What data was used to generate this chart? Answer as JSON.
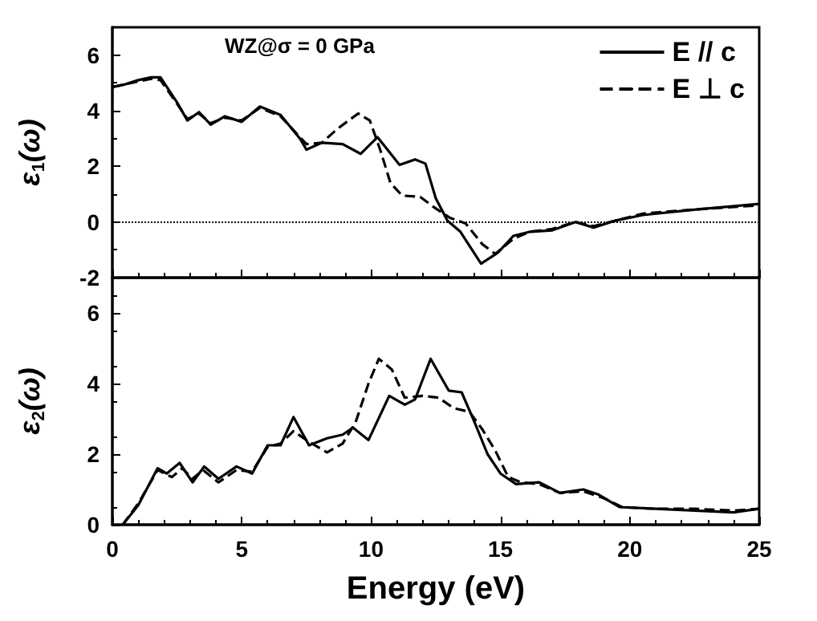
{
  "chart_data": [
    {
      "type": "line",
      "ylabel": "ε$_{1}$(ω)",
      "annotations": [
        "WZ@σ = 0 GPa"
      ],
      "legend": "top right",
      "marker": "none",
      "grid": false,
      "tick_labels": "y",
      "xlim": [
        0,
        25
      ],
      "xticks": [
        0,
        5,
        10,
        15,
        20,
        25
      ],
      "ylim": [
        -2,
        7
      ],
      "yticks": [
        -2,
        0,
        2,
        4,
        6
      ],
      "ref_lines": [
        {
          "axis": "y",
          "value": 0,
          "line_style": "dotted",
          "color": "#000000"
        }
      ],
      "series": [
        {
          "name": "E // c",
          "color": "#000000",
          "line_style": "solid",
          "x": [
            0,
            0.5,
            1,
            1.5,
            1.86,
            2.5,
            2.9,
            3.35,
            3.8,
            4.35,
            5.0,
            5.7,
            6.5,
            7.25,
            7.5,
            8.1,
            8.9,
            9.6,
            10.25,
            11.1,
            11.7,
            12.1,
            12.5,
            12.95,
            13.45,
            14.25,
            14.9,
            15.5,
            16.15,
            17.0,
            17.9,
            18.6,
            19.45,
            20.5,
            22.55,
            25
          ],
          "values": [
            4.85,
            4.95,
            5.1,
            5.2,
            5.2,
            4.3,
            3.65,
            3.95,
            3.5,
            3.8,
            3.6,
            4.15,
            3.85,
            3.0,
            2.6,
            2.85,
            2.8,
            2.45,
            3.05,
            2.05,
            2.25,
            2.1,
            0.85,
            0.05,
            -0.35,
            -1.5,
            -1.1,
            -0.5,
            -0.35,
            -0.3,
            0,
            -0.2,
            0.05,
            0.25,
            0.45,
            0.65
          ]
        },
        {
          "name": "E ⊥ c",
          "color": "#000000",
          "line_style": "dashed",
          "x": [
            0,
            0.5,
            1,
            1.5,
            1.86,
            2.5,
            2.9,
            3.35,
            3.8,
            4.35,
            5.0,
            5.7,
            6.5,
            7.25,
            7.5,
            8.1,
            8.7,
            9.5,
            9.95,
            10.35,
            10.75,
            11.2,
            11.9,
            12.4,
            13.05,
            13.65,
            14.3,
            14.8,
            15.5,
            16.15,
            17.0,
            17.9,
            18.6,
            19.45,
            20.5,
            22.55,
            25
          ],
          "values": [
            4.85,
            4.95,
            5.05,
            5.15,
            5.1,
            4.25,
            3.7,
            3.9,
            3.55,
            3.75,
            3.65,
            4.1,
            3.8,
            3.05,
            2.8,
            2.85,
            3.35,
            3.9,
            3.65,
            2.6,
            1.4,
            0.95,
            0.9,
            0.55,
            0.15,
            -0.05,
            -0.8,
            -1.15,
            -0.6,
            -0.35,
            -0.25,
            0,
            -0.15,
            0.05,
            0.3,
            0.45,
            0.6
          ]
        }
      ]
    },
    {
      "type": "line",
      "xlabel": "Energy (eV)",
      "ylabel": "ε$_{2}$(ω)",
      "legend": false,
      "marker": "none",
      "grid": false,
      "xlim": [
        0,
        25
      ],
      "xticks": [
        0,
        5,
        10,
        15,
        20,
        25
      ],
      "ylim": [
        0,
        7
      ],
      "yticks": [
        0,
        2,
        4,
        6
      ],
      "series": [
        {
          "color": "#000000",
          "line_style": "solid",
          "x": [
            0.4,
            1.0,
            1.75,
            2.1,
            2.6,
            3.1,
            3.55,
            4.1,
            4.8,
            5.4,
            6.0,
            6.5,
            7.0,
            7.6,
            8.3,
            8.9,
            9.3,
            9.9,
            10.7,
            11.3,
            11.7,
            12.3,
            13.0,
            13.5,
            14.0,
            14.5,
            15.0,
            15.6,
            16.5,
            17.3,
            18.2,
            18.8,
            19.6,
            21.0,
            22.5,
            24.0,
            25.0
          ],
          "values": [
            0,
            0.55,
            1.6,
            1.45,
            1.75,
            1.2,
            1.65,
            1.3,
            1.65,
            1.45,
            2.25,
            2.25,
            3.05,
            2.25,
            2.45,
            2.55,
            2.75,
            2.4,
            3.65,
            3.4,
            3.55,
            4.7,
            3.8,
            3.75,
            2.9,
            2.0,
            1.45,
            1.15,
            1.2,
            0.9,
            1.0,
            0.85,
            0.5,
            0.45,
            0.4,
            0.35,
            0.45
          ]
        },
        {
          "color": "#000000",
          "line_style": "dashed",
          "x": [
            0.4,
            1.0,
            1.75,
            2.3,
            2.7,
            3.1,
            3.5,
            4.1,
            4.8,
            5.4,
            6.0,
            6.5,
            7.0,
            7.6,
            8.3,
            8.9,
            9.4,
            9.9,
            10.3,
            10.8,
            11.3,
            12.0,
            12.6,
            13.2,
            13.8,
            14.3,
            14.8,
            15.3,
            15.8,
            16.5,
            17.3,
            18.2,
            19.0,
            19.7,
            21.0,
            22.5,
            24.0,
            25.0
          ],
          "values": [
            0,
            0.6,
            1.55,
            1.35,
            1.6,
            1.3,
            1.55,
            1.2,
            1.55,
            1.5,
            2.2,
            2.3,
            2.65,
            2.35,
            2.05,
            2.3,
            2.9,
            4.0,
            4.7,
            4.4,
            3.6,
            3.65,
            3.6,
            3.3,
            3.2,
            2.7,
            2.1,
            1.35,
            1.2,
            1.15,
            0.9,
            0.95,
            0.75,
            0.5,
            0.45,
            0.45,
            0.4,
            0.45
          ]
        }
      ]
    }
  ]
}
